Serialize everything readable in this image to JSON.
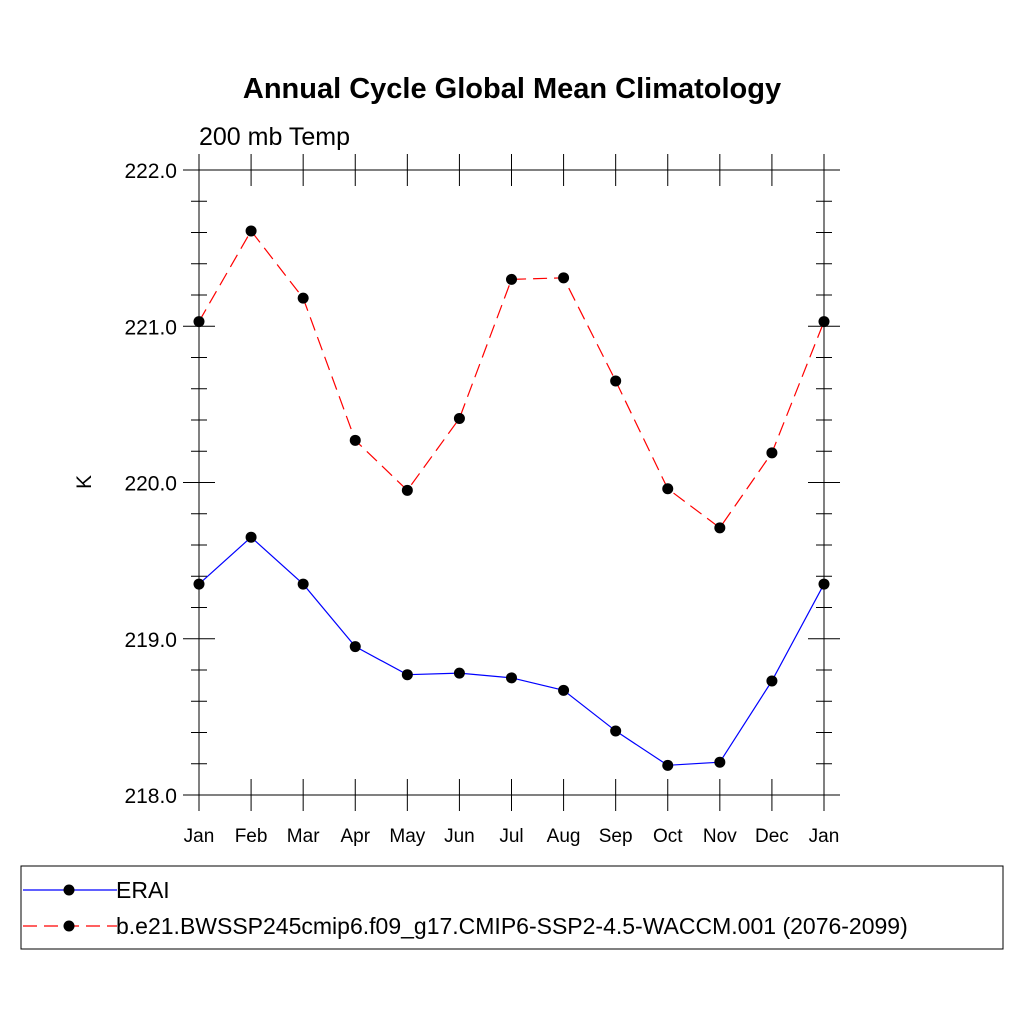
{
  "chart_data": {
    "type": "line",
    "title": "Annual Cycle Global Mean Climatology",
    "subtitle": "200 mb Temp",
    "xlabel": "",
    "ylabel": "K",
    "categories": [
      "Jan",
      "Feb",
      "Mar",
      "Apr",
      "May",
      "Jun",
      "Jul",
      "Aug",
      "Sep",
      "Oct",
      "Nov",
      "Dec",
      "Jan"
    ],
    "ylim": [
      218.0,
      222.0
    ],
    "yticks": [
      "218.0",
      "219.0",
      "220.0",
      "221.0",
      "222.0"
    ],
    "grid": false,
    "legend_position": "bottom",
    "series": [
      {
        "name": "ERAI",
        "color": "#0000ff",
        "dash": "solid",
        "values": [
          219.35,
          219.65,
          219.35,
          218.95,
          218.77,
          218.78,
          218.75,
          218.67,
          218.41,
          218.19,
          218.21,
          218.73,
          219.35
        ]
      },
      {
        "name": "b.e21.BWSSP245cmip6.f09_g17.CMIP6-SSP2-4.5-WACCM.001 (2076-2099)",
        "color": "#ff0000",
        "dash": "dashed",
        "values": [
          221.03,
          221.61,
          221.18,
          220.27,
          219.95,
          220.41,
          221.3,
          221.31,
          220.65,
          219.96,
          219.71,
          220.19,
          221.03
        ]
      }
    ]
  }
}
